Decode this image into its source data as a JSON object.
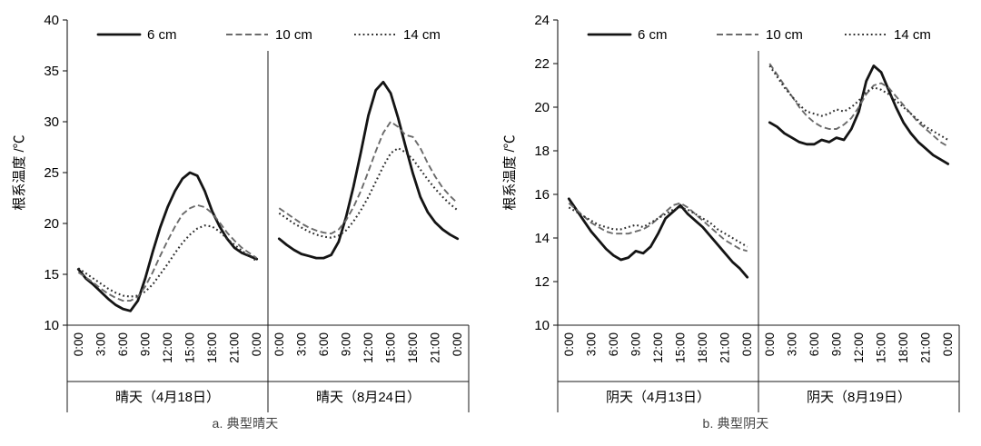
{
  "figure_background": "#ffffff",
  "chart_data": [
    {
      "type": "line",
      "caption": "a. 典型晴天",
      "ylabel": "根系温度 /℃",
      "ylim": [
        10,
        40
      ],
      "ytick_step": 5,
      "grid": false,
      "legend_position": "top",
      "legend": [
        {
          "label": "6 cm",
          "style": "solid"
        },
        {
          "label": "10 cm",
          "style": "dashed"
        },
        {
          "label": "14 cm",
          "style": "dotted"
        }
      ],
      "xticklabels": [
        "0:00",
        "3:00",
        "6:00",
        "9:00",
        "12:00",
        "15:00",
        "18:00",
        "21:00",
        "0:00"
      ],
      "panels": [
        {
          "label": "晴天（4月18日）",
          "series": [
            {
              "name": "6 cm",
              "style": "solid",
              "x_step_hours": 1,
              "values": [
                15.5,
                14.6,
                14.0,
                13.3,
                12.6,
                12.0,
                11.6,
                11.4,
                12.4,
                14.6,
                17.2,
                19.6,
                21.6,
                23.2,
                24.4,
                25.0,
                24.7,
                23.2,
                21.2,
                19.7,
                18.5,
                17.6,
                17.1,
                16.8,
                16.5
              ]
            },
            {
              "name": "10 cm",
              "style": "dashed",
              "x_step_hours": 1,
              "values": [
                15.2,
                14.7,
                14.2,
                13.6,
                13.1,
                12.7,
                12.4,
                12.4,
                12.8,
                13.8,
                15.2,
                16.8,
                18.3,
                19.7,
                20.9,
                21.5,
                21.8,
                21.6,
                21.0,
                20.1,
                19.1,
                18.3,
                17.6,
                17.1,
                16.6
              ]
            },
            {
              "name": "14 cm",
              "style": "dotted",
              "x_step_hours": 1,
              "values": [
                15.6,
                15.1,
                14.6,
                14.1,
                13.6,
                13.2,
                12.9,
                12.8,
                12.9,
                13.3,
                14.0,
                15.0,
                16.0,
                17.1,
                18.1,
                18.9,
                19.5,
                19.8,
                19.7,
                19.2,
                18.5,
                17.9,
                17.3,
                16.8,
                16.3
              ]
            }
          ]
        },
        {
          "label": "晴天（8月24日）",
          "series": [
            {
              "name": "6 cm",
              "style": "solid",
              "x_step_hours": 1,
              "values": [
                18.5,
                17.9,
                17.4,
                17.0,
                16.8,
                16.6,
                16.6,
                16.9,
                18.2,
                20.6,
                23.6,
                27.0,
                30.6,
                33.1,
                33.9,
                32.8,
                30.4,
                27.6,
                24.9,
                22.6,
                21.1,
                20.1,
                19.4,
                18.9,
                18.5
              ]
            },
            {
              "name": "10 cm",
              "style": "dashed",
              "x_step_hours": 1,
              "values": [
                21.5,
                21.0,
                20.5,
                20.0,
                19.6,
                19.3,
                19.1,
                19.0,
                19.4,
                20.3,
                21.6,
                23.2,
                25.1,
                27.1,
                28.9,
                30.0,
                29.5,
                28.7,
                28.5,
                27.4,
                25.9,
                24.6,
                23.5,
                22.7,
                22.0
              ]
            },
            {
              "name": "14 cm",
              "style": "dotted",
              "x_step_hours": 1,
              "values": [
                21.0,
                20.5,
                20.0,
                19.6,
                19.2,
                18.9,
                18.7,
                18.6,
                18.8,
                19.3,
                20.2,
                21.3,
                22.6,
                24.1,
                25.6,
                26.9,
                27.4,
                27.0,
                26.3,
                25.3,
                24.3,
                23.4,
                22.6,
                21.9,
                21.3
              ]
            }
          ]
        }
      ]
    },
    {
      "type": "line",
      "caption": "b. 典型阴天",
      "ylabel": "根系温度 /℃",
      "ylim": [
        10,
        24
      ],
      "ytick_step": 2,
      "grid": false,
      "legend_position": "top",
      "legend": [
        {
          "label": "6 cm",
          "style": "solid"
        },
        {
          "label": "10 cm",
          "style": "dashed"
        },
        {
          "label": "14 cm",
          "style": "dotted"
        }
      ],
      "xticklabels": [
        "0:00",
        "3:00",
        "6:00",
        "9:00",
        "12:00",
        "15:00",
        "18:00",
        "21:00",
        "0:00"
      ],
      "panels": [
        {
          "label": "阴天（4月13日）",
          "series": [
            {
              "name": "6 cm",
              "style": "solid",
              "x_step_hours": 1,
              "values": [
                15.8,
                15.3,
                14.8,
                14.3,
                13.9,
                13.5,
                13.2,
                13.0,
                13.1,
                13.4,
                13.3,
                13.6,
                14.2,
                14.9,
                15.2,
                15.5,
                15.1,
                14.8,
                14.5,
                14.1,
                13.7,
                13.3,
                12.9,
                12.6,
                12.2
              ]
            },
            {
              "name": "10 cm",
              "style": "dashed",
              "x_step_hours": 1,
              "values": [
                15.6,
                15.3,
                15.0,
                14.7,
                14.5,
                14.3,
                14.2,
                14.2,
                14.2,
                14.3,
                14.4,
                14.6,
                14.9,
                15.2,
                15.5,
                15.6,
                15.4,
                15.1,
                14.8,
                14.5,
                14.2,
                13.9,
                13.7,
                13.5,
                13.4
              ]
            },
            {
              "name": "14 cm",
              "style": "dotted",
              "x_step_hours": 1,
              "values": [
                15.4,
                15.2,
                15.0,
                14.8,
                14.6,
                14.5,
                14.4,
                14.4,
                14.5,
                14.6,
                14.5,
                14.7,
                14.9,
                15.1,
                15.3,
                15.4,
                15.3,
                15.1,
                14.9,
                14.7,
                14.4,
                14.2,
                14.0,
                13.8,
                13.6
              ]
            }
          ]
        },
        {
          "label": "阴天（8月19日）",
          "series": [
            {
              "name": "6 cm",
              "style": "solid",
              "x_step_hours": 1,
              "values": [
                19.3,
                19.1,
                18.8,
                18.6,
                18.4,
                18.3,
                18.3,
                18.5,
                18.4,
                18.6,
                18.5,
                19.0,
                19.8,
                21.2,
                21.9,
                21.6,
                20.8,
                20.0,
                19.3,
                18.8,
                18.4,
                18.1,
                17.8,
                17.6,
                17.4
              ]
            },
            {
              "name": "10 cm",
              "style": "dashed",
              "x_step_hours": 1,
              "values": [
                22.0,
                21.5,
                21.0,
                20.5,
                20.0,
                19.6,
                19.3,
                19.1,
                19.0,
                19.0,
                19.2,
                19.5,
                20.0,
                20.6,
                21.0,
                21.1,
                20.9,
                20.5,
                20.1,
                19.7,
                19.3,
                19.0,
                18.7,
                18.4,
                18.2
              ]
            },
            {
              "name": "14 cm",
              "style": "dotted",
              "x_step_hours": 1,
              "values": [
                21.9,
                21.4,
                20.9,
                20.5,
                20.1,
                19.8,
                19.7,
                19.6,
                19.7,
                19.9,
                19.8,
                20.0,
                20.3,
                20.7,
                20.9,
                20.8,
                20.6,
                20.3,
                20.0,
                19.7,
                19.4,
                19.1,
                18.9,
                18.7,
                18.5
              ]
            }
          ]
        }
      ]
    }
  ]
}
